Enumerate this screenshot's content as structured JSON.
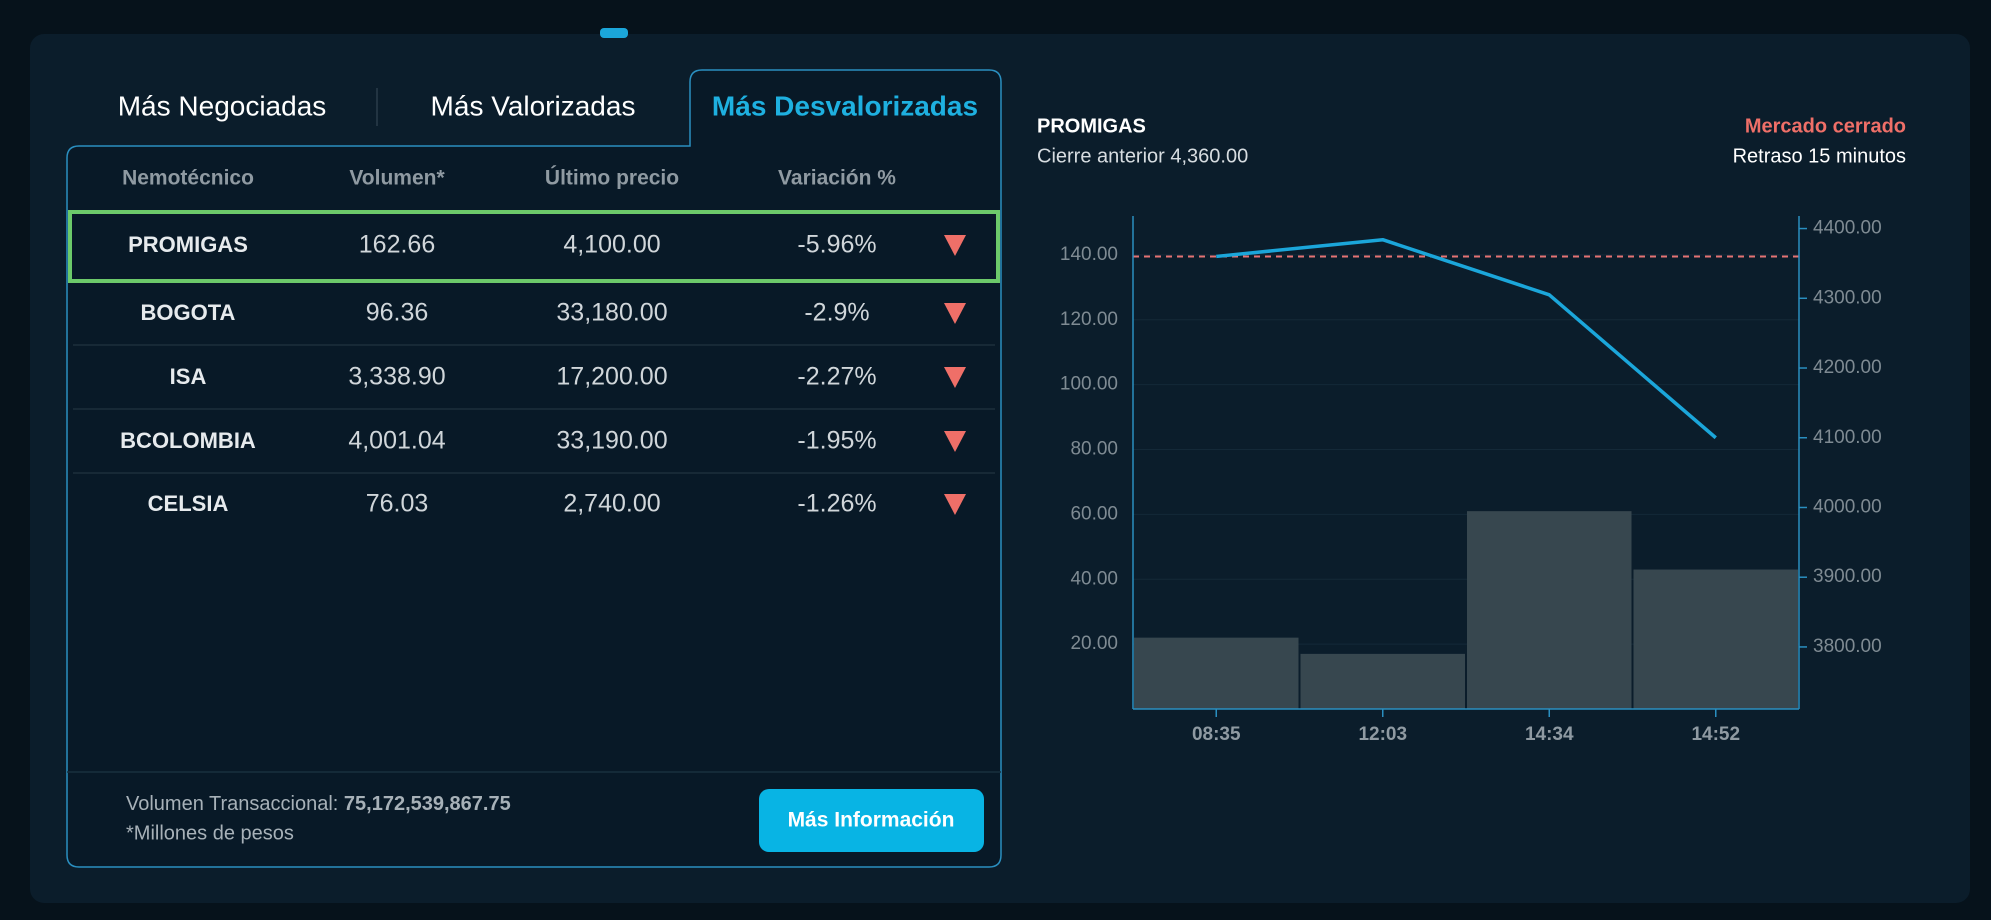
{
  "tabs": [
    "Más Negociadas",
    "Más Valorizadas",
    "Más Desvalorizadas"
  ],
  "table": {
    "columns": [
      "Nemotécnico",
      "Volumen*",
      "Último precio",
      "Variación %"
    ],
    "rows": [
      [
        "PROMIGAS",
        "162.66",
        "4,100.00",
        "-5.96%"
      ],
      [
        "BOGOTA",
        "96.36",
        "33,180.00",
        "-2.9%"
      ],
      [
        "ISA",
        "3,338.90",
        "17,200.00",
        "-2.27%"
      ],
      [
        "BCOLOMBIA",
        "4,001.04",
        "33,190.00",
        "-1.95%"
      ],
      [
        "CELSIA",
        "76.03",
        "2,740.00",
        "-1.26%"
      ]
    ]
  },
  "footer": {
    "volume_label": "Volumen Transaccional:",
    "volume_value": "75,172,539,867.75",
    "note": "*Millones de pesos",
    "button": "Más Información"
  },
  "chart_data": {
    "type": "combo",
    "title": "PROMIGAS",
    "subtitle": "Cierre anterior 4,360.00",
    "status": "Mercado cerrado",
    "delay": "Retraso 15 minutos",
    "categories": [
      "08:35",
      "12:03",
      "14:34",
      "14:52"
    ],
    "series": [
      {
        "type": "bar",
        "color": "#37474f",
        "values": [
          22,
          17,
          61,
          43
        ]
      },
      {
        "type": "line",
        "axis": "y2",
        "color": "#1ba6da",
        "values": [
          4360,
          4384,
          4305,
          4100
        ]
      }
    ],
    "reference_line": {
      "value": 4360,
      "axis": "y2",
      "color": "#e57373"
    },
    "ylim": [
      0,
      152
    ],
    "yticks": [
      {
        "value": 20,
        "label": "20.00"
      },
      {
        "value": 40,
        "label": "40.00"
      },
      {
        "value": 60,
        "label": "60.00"
      },
      {
        "value": 80,
        "label": "80.00"
      },
      {
        "value": 100,
        "label": "100.00"
      },
      {
        "value": 120,
        "label": "120.00"
      },
      {
        "value": 140,
        "label": "140.00"
      }
    ],
    "y2lim": [
      3711,
      4418
    ],
    "y2ticks": [
      {
        "value": 3800,
        "label": "3800.00"
      },
      {
        "value": 3900,
        "label": "3900.00"
      },
      {
        "value": 4000,
        "label": "4000.00"
      },
      {
        "value": 4100,
        "label": "4100.00"
      },
      {
        "value": 4200,
        "label": "4200.00"
      },
      {
        "value": 4300,
        "label": "4300.00"
      },
      {
        "value": 4400,
        "label": "4400.00"
      }
    ],
    "grid": true
  }
}
